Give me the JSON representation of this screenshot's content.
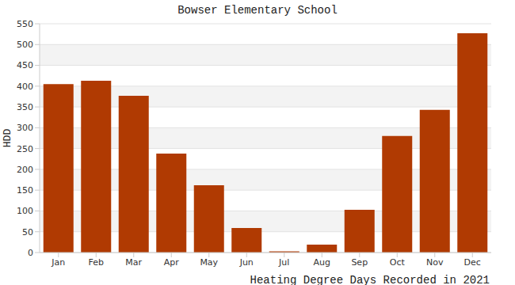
{
  "chart_data": {
    "type": "bar",
    "title": "Bowser Elementary School",
    "x_label": "Heating Degree Days Recorded in 2021",
    "y_label": "HDD",
    "categories": [
      "Jan",
      "Feb",
      "Mar",
      "Apr",
      "May",
      "Jun",
      "Jul",
      "Aug",
      "Sep",
      "Oct",
      "Nov",
      "Dec"
    ],
    "values": [
      405,
      413,
      377,
      238,
      162,
      59,
      3,
      19,
      103,
      280,
      343,
      527
    ],
    "color": "#b03a02",
    "ylim": [
      0,
      550
    ],
    "yticks": [
      0,
      50,
      100,
      150,
      200,
      250,
      300,
      350,
      400,
      450,
      500,
      550
    ],
    "grid": true
  }
}
